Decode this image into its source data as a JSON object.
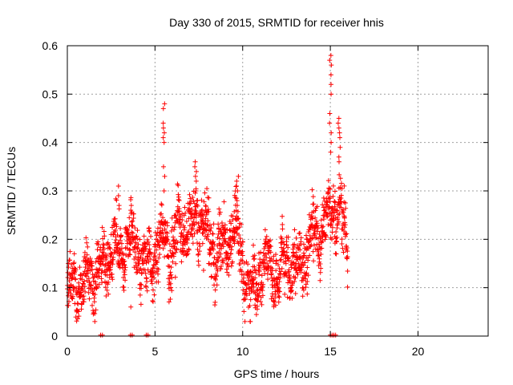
{
  "chart_data": {
    "type": "scatter",
    "title": "Day 330 of 2015, SRMTID for receiver hnis",
    "xlabel": "GPS time / hours",
    "ylabel": "SRMTID / TECUs",
    "xlim": [
      0,
      24
    ],
    "ylim": [
      0,
      0.6
    ],
    "xticks": [
      "0",
      "5",
      "10",
      "15",
      "20"
    ],
    "yticks": [
      "0",
      "0.1",
      "0.2",
      "0.3",
      "0.4",
      "0.5",
      "0.6"
    ],
    "grid": true,
    "marker": "+",
    "color": "#ff0000",
    "series": [
      {
        "name": "SRMTID",
        "trend": [
          [
            0.0,
            0.1
          ],
          [
            0.5,
            0.1
          ],
          [
            1.0,
            0.12
          ],
          [
            1.5,
            0.13
          ],
          [
            2.0,
            0.13
          ],
          [
            2.5,
            0.19
          ],
          [
            3.0,
            0.17
          ],
          [
            3.5,
            0.2
          ],
          [
            4.0,
            0.19
          ],
          [
            4.5,
            0.13
          ],
          [
            5.0,
            0.17
          ],
          [
            5.5,
            0.2
          ],
          [
            6.0,
            0.17
          ],
          [
            6.5,
            0.24
          ],
          [
            7.0,
            0.21
          ],
          [
            7.5,
            0.26
          ],
          [
            8.0,
            0.2
          ],
          [
            8.5,
            0.17
          ],
          [
            9.0,
            0.18
          ],
          [
            9.5,
            0.24
          ],
          [
            10.0,
            0.14
          ],
          [
            10.5,
            0.09
          ],
          [
            11.0,
            0.14
          ],
          [
            11.5,
            0.15
          ],
          [
            12.0,
            0.12
          ],
          [
            12.5,
            0.16
          ],
          [
            13.0,
            0.14
          ],
          [
            13.5,
            0.16
          ],
          [
            14.0,
            0.21
          ],
          [
            14.5,
            0.22
          ],
          [
            15.0,
            0.26
          ],
          [
            15.5,
            0.27
          ],
          [
            16.0,
            0.18
          ]
        ],
        "spread": 0.045,
        "time_range": [
          0.0,
          16.0
        ],
        "points_per_hour": 110,
        "bursts": [
          {
            "x": 5.5,
            "values": [
              0.48,
              0.47,
              0.44,
              0.43,
              0.42,
              0.41,
              0.4,
              0.35,
              0.33,
              0.3
            ]
          },
          {
            "x": 7.3,
            "values": [
              0.36,
              0.35,
              0.34,
              0.33,
              0.32,
              0.3
            ]
          },
          {
            "x": 9.7,
            "values": [
              0.33,
              0.32,
              0.31,
              0.3,
              0.28,
              0.27
            ]
          },
          {
            "x": 15.0,
            "values": [
              0.58,
              0.57,
              0.56,
              0.54,
              0.52,
              0.5,
              0.46,
              0.44,
              0.42,
              0.4,
              0.38
            ]
          },
          {
            "x": 15.5,
            "values": [
              0.45,
              0.44,
              0.43,
              0.42,
              0.41,
              0.39,
              0.37,
              0.36
            ]
          },
          {
            "x": 2.9,
            "values": [
              0.31,
              0.29,
              0.27
            ]
          },
          {
            "x": 3.6,
            "values": [
              0.06,
              0.27,
              0.26
            ]
          }
        ],
        "zero_points": [
          1.9,
          2.0,
          3.6,
          3.7,
          4.5,
          4.6,
          15.0,
          15.1,
          15.2,
          15.3
        ]
      }
    ]
  }
}
